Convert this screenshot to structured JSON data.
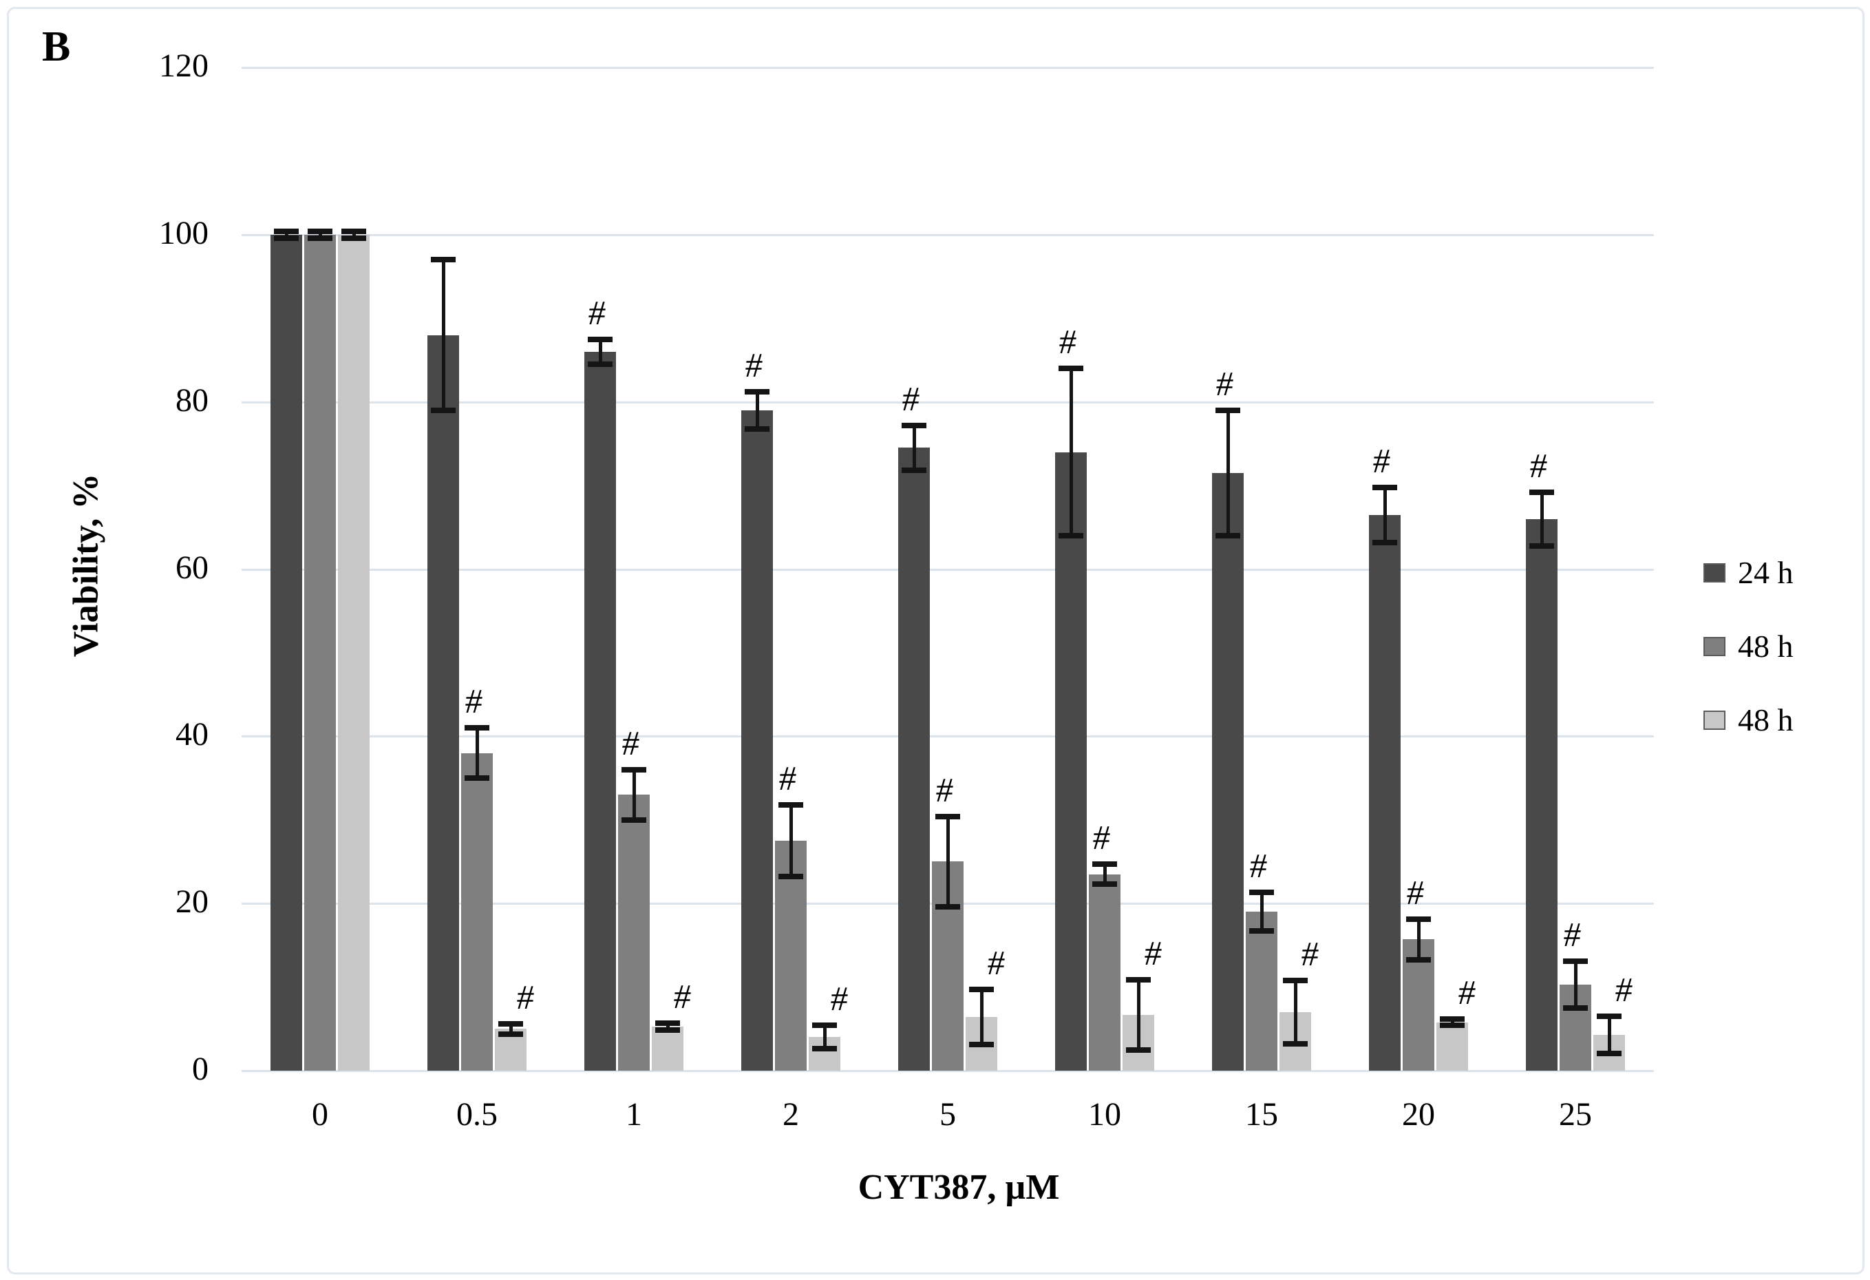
{
  "figure_label": "B",
  "axes": {
    "y_title": "Viability,  %",
    "x_title": "CYT387, µM"
  },
  "colors": {
    "series_24h": "#494949",
    "series_48h": "#7f7f7f",
    "series_48h_light": "#c7c7c7",
    "gridline": "#dbe3ec",
    "error_bar": "#141414",
    "frame_border": "#e3e8ee",
    "background": "#ffffff"
  },
  "chart_data": {
    "type": "bar",
    "title": "",
    "xlabel": "CYT387, µM",
    "ylabel": "Viability, %",
    "ylim": [
      0,
      120
    ],
    "yticks": [
      0,
      20,
      40,
      60,
      80,
      100,
      120
    ],
    "grid": true,
    "legend_position": "right",
    "significance_symbol": "#",
    "categories": [
      "0",
      "0.5",
      "1",
      "2",
      "5",
      "10",
      "15",
      "20",
      "25"
    ],
    "series": [
      {
        "name": "24 h",
        "color": "#494949",
        "values": [
          100,
          88,
          86,
          79,
          74.5,
          74,
          71.5,
          66.5,
          66
        ],
        "errors": [
          0.4,
          9,
          1.5,
          2.2,
          2.7,
          10,
          7.5,
          3.3,
          3.2
        ],
        "significant": [
          false,
          false,
          true,
          true,
          true,
          true,
          true,
          true,
          true
        ]
      },
      {
        "name": "48 h",
        "color": "#7f7f7f",
        "values": [
          100,
          38,
          33,
          27.5,
          25,
          23.5,
          19,
          15.7,
          10.3
        ],
        "errors": [
          0.4,
          3,
          3,
          4.3,
          5.4,
          1.2,
          2.3,
          2.4,
          2.8
        ],
        "significant": [
          false,
          true,
          true,
          true,
          true,
          true,
          true,
          true,
          true
        ]
      },
      {
        "name": "48 h",
        "color": "#c7c7c7",
        "values": [
          100,
          5,
          5.3,
          4,
          6.4,
          6.7,
          7,
          5.8,
          4.3
        ],
        "errors": [
          0.4,
          0.6,
          0.4,
          1.4,
          3.3,
          4.2,
          3.8,
          0.4,
          2.2
        ],
        "significant": [
          false,
          true,
          true,
          true,
          true,
          true,
          true,
          true,
          true
        ]
      }
    ]
  }
}
